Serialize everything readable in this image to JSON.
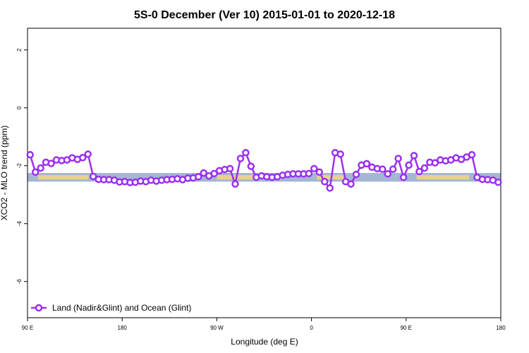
{
  "chart_data": {
    "type": "line",
    "title": "5S-0 December (Ver 10)   2015-01-01 to 2020-12-18",
    "xlabel": "Longitude (deg E)",
    "ylabel": "XCO2 - MLO trend (ppm)",
    "xlim": [
      90,
      540
    ],
    "ylim": [
      -7.25,
      2.75
    ],
    "x_ticks": [
      {
        "value": 90,
        "label": "90 E"
      },
      {
        "value": 180,
        "label": "180"
      },
      {
        "value": 270,
        "label": "90 W"
      },
      {
        "value": 360,
        "label": "0"
      },
      {
        "value": 450,
        "label": "90 E"
      },
      {
        "value": 540,
        "label": "180"
      }
    ],
    "y_ticks": [
      {
        "value": 2,
        "label": "2"
      },
      {
        "value": 0,
        "label": "0"
      },
      {
        "value": -2,
        "label": "-2"
      },
      {
        "value": -4,
        "label": "-4"
      },
      {
        "value": -6,
        "label": "-6"
      }
    ],
    "band": {
      "y_min": -2.55,
      "y_max": -2.25,
      "color": "#a4b6d4",
      "land_color": "#f5d77a"
    },
    "land_segments": [
      [
        100,
        148
      ],
      [
        270,
        305
      ],
      [
        310,
        332
      ],
      [
        365,
        392
      ],
      [
        460,
        510
      ]
    ],
    "series": [
      {
        "name": "Land (Nadir&Glint) and Ocean (Glint)",
        "color": "#9b30f0",
        "x": [
          92.5,
          97.5,
          102.5,
          107.5,
          112.5,
          117.5,
          122.5,
          127.5,
          132.5,
          137.5,
          142.5,
          147.5,
          152.5,
          157.5,
          162.5,
          167.5,
          172.5,
          177.5,
          182.5,
          187.5,
          192.5,
          197.5,
          202.5,
          207.5,
          212.5,
          217.5,
          222.5,
          227.5,
          232.5,
          237.5,
          242.5,
          247.5,
          252.5,
          257.5,
          262.5,
          267.5,
          272.5,
          277.5,
          282.5,
          287.5,
          292.5,
          297.5,
          302.5,
          307.5,
          312.5,
          317.5,
          322.5,
          327.5,
          332.5,
          337.5,
          342.5,
          347.5,
          352.5,
          357.5,
          362.5,
          367.5,
          372.5,
          377.5,
          382.5,
          387.5,
          392.5,
          397.5,
          402.5,
          407.5,
          412.5,
          417.5,
          422.5,
          427.5,
          432.5,
          437.5,
          442.5,
          447.5,
          452.5,
          457.5,
          462.5,
          467.5,
          472.5,
          477.5,
          482.5,
          487.5,
          492.5,
          497.5,
          502.5,
          507.5,
          512.5,
          517.5,
          522.5,
          527.5,
          532.5,
          537.5
        ],
        "values": [
          -1.62,
          -2.22,
          -2.08,
          -1.88,
          -1.92,
          -1.8,
          -1.82,
          -1.8,
          -1.73,
          -1.78,
          -1.72,
          -1.6,
          -2.37,
          -2.47,
          -2.48,
          -2.48,
          -2.5,
          -2.56,
          -2.55,
          -2.58,
          -2.57,
          -2.53,
          -2.55,
          -2.5,
          -2.53,
          -2.5,
          -2.48,
          -2.47,
          -2.45,
          -2.48,
          -2.43,
          -2.42,
          -2.38,
          -2.25,
          -2.35,
          -2.27,
          -2.17,
          -2.13,
          -2.1,
          -2.63,
          -1.75,
          -1.55,
          -2.02,
          -2.4,
          -2.35,
          -2.38,
          -2.4,
          -2.38,
          -2.33,
          -2.3,
          -2.28,
          -2.28,
          -2.28,
          -2.27,
          -2.1,
          -2.22,
          -2.55,
          -2.77,
          -1.55,
          -1.6,
          -2.55,
          -2.63,
          -2.3,
          -1.98,
          -1.93,
          -2.05,
          -2.1,
          -2.12,
          -2.28,
          -2.12,
          -1.75,
          -2.4,
          -1.98,
          -1.65,
          -2.2,
          -2.08,
          -1.88,
          -1.9,
          -1.8,
          -1.83,
          -1.8,
          -1.73,
          -1.78,
          -1.7,
          -1.62,
          -2.4,
          -2.47,
          -2.48,
          -2.5,
          -2.57
        ]
      }
    ],
    "legend": {
      "placement": "bottom-left",
      "label": "Land (Nadir&Glint) and Ocean (Glint)"
    }
  }
}
